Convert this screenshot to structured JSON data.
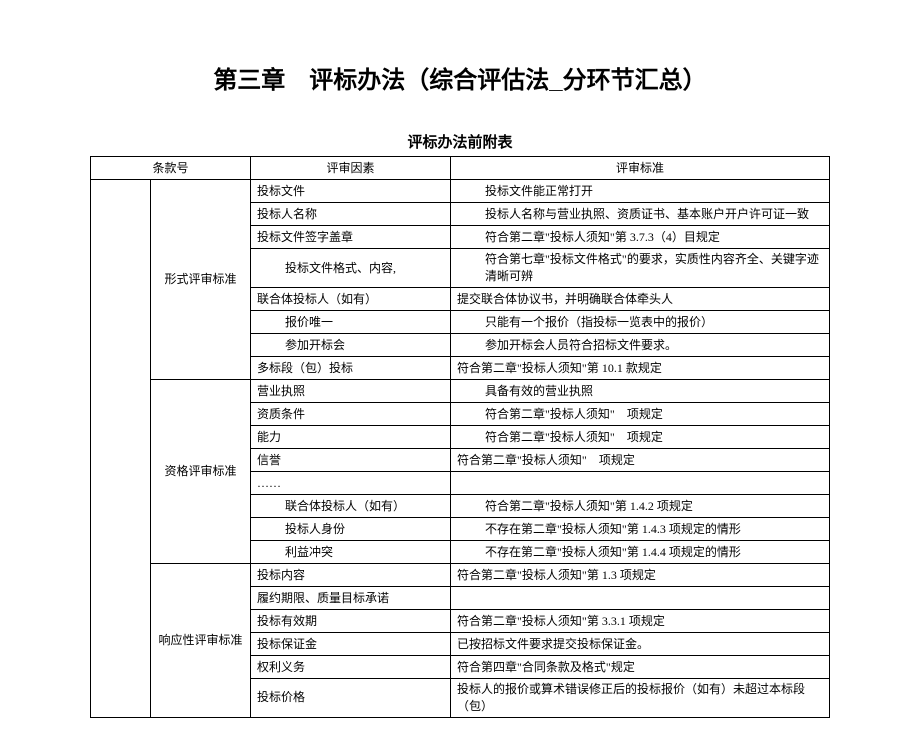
{
  "title": "第三章　评标办法（综合评估法_分环节汇总）",
  "table_title": "评标办法前附表",
  "head": {
    "col1": "条款号",
    "col2": "评审因素",
    "col3": "评审标准"
  },
  "groups": [
    {
      "label": "形式评审标准",
      "rows": [
        {
          "factor": "投标文件",
          "standard": "投标文件能正常打开",
          "indentStd": true
        },
        {
          "factor": "投标人名称",
          "standard": "投标人名称与营业执照、资质证书、基本账户开户许可证一致",
          "indentStd": true
        },
        {
          "factor": "投标文件签字盖章",
          "standard": "符合第二章\"投标人须知\"第 3.7.3（4）目规定",
          "indentStd": true
        },
        {
          "factor": "投标文件格式、内容,",
          "standard": "符合第七章\"投标文件格式\"的要求，实质性内容齐全、关键字迹清晰可辨",
          "indentStd": true,
          "indentFactor": true,
          "tall": true
        },
        {
          "factor": "联合体投标人（如有）",
          "standard": "提交联合体协议书，并明确联合体牵头人"
        },
        {
          "factor": "报价唯一",
          "standard": "只能有一个报价（指投标一览表中的报价）",
          "indentFactor": true,
          "indentStd": true
        },
        {
          "factor": "参加开标会",
          "standard": "参加开标会人员符合招标文件要求。",
          "indentFactor": true,
          "indentStd": true
        },
        {
          "factor": "多标段（包）投标",
          "standard": "符合第二章\"投标人须知\"第 10.1 款规定"
        }
      ]
    },
    {
      "label": "资格评审标准",
      "rows": [
        {
          "factor": "营业执照",
          "standard": "具备有效的营业执照",
          "indentStd": true
        },
        {
          "factor": "资质条件",
          "standard": "符合第二章\"投标人须知\"　项规定",
          "indentStd": true
        },
        {
          "factor": "能力",
          "standard": "符合第二章\"投标人须知\"　项规定",
          "indentStd": true
        },
        {
          "factor": "信誉",
          "standard": "符合第二章\"投标人须知\"　项规定"
        },
        {
          "factor": "……",
          "standard": ""
        },
        {
          "factor": "联合体投标人（如有）",
          "standard": "符合第二章\"投标人须知\"第 1.4.2 项规定",
          "indentFactor": true,
          "indentStd": true
        },
        {
          "factor": "投标人身份",
          "standard": "不存在第二章\"投标人须知\"第 1.4.3 项规定的情形",
          "indentFactor": true,
          "indentStd": true
        },
        {
          "factor": "利益冲突",
          "standard": "不存在第二章\"投标人须知\"第 1.4.4 项规定的情形",
          "indentFactor": true,
          "indentStd": true
        }
      ]
    },
    {
      "label": "响应性评审标准",
      "rows": [
        {
          "factor": "投标内容",
          "standard": "符合第二章\"投标人须知\"第 1.3 项规定"
        },
        {
          "factor": "履约期限、质量目标承诺",
          "standard": ""
        },
        {
          "factor": "投标有效期",
          "standard": "符合第二章\"投标人须知\"第 3.3.1 项规定"
        },
        {
          "factor": "投标保证金",
          "standard": "已按招标文件要求提交投标保证金。"
        },
        {
          "factor": "权利义务",
          "standard": "符合第四章\"合同条款及格式\"规定"
        },
        {
          "factor": "投标价格",
          "standard": "投标人的报价或算术错误修正后的投标报价（如有）未超过本标段（包）"
        }
      ]
    }
  ]
}
